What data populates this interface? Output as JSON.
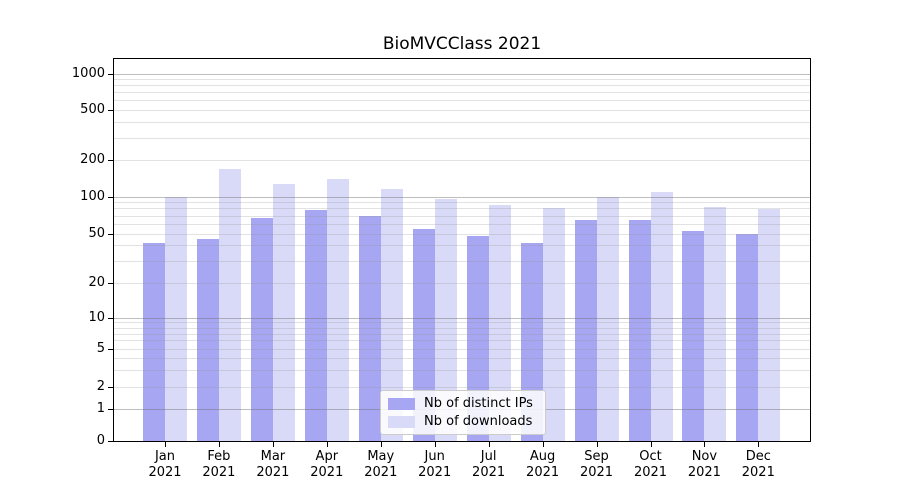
{
  "chart_data": {
    "type": "bar",
    "title": "BioMVCClass 2021",
    "categories": [
      "Jan",
      "Feb",
      "Mar",
      "Apr",
      "May",
      "Jun",
      "Jul",
      "Aug",
      "Sep",
      "Oct",
      "Nov",
      "Dec"
    ],
    "year_label": "2021",
    "series": [
      {
        "key": "distinct-ips",
        "name": "Nb of distinct IPs",
        "color": "#a6a6f2",
        "values": [
          42,
          45,
          67,
          78,
          70,
          54,
          48,
          42,
          64,
          64,
          52,
          50
        ]
      },
      {
        "key": "downloads",
        "name": "Nb of downloads",
        "color": "#d9d9f8",
        "values": [
          100,
          168,
          127,
          140,
          115,
          95,
          85,
          80,
          100,
          108,
          82,
          79
        ]
      }
    ],
    "xlabel": "",
    "ylabel": "",
    "yscale": "log-like (1-2-5 sequence with 0 baseline)",
    "ytick_labels": [
      "1000",
      "500",
      "200",
      "100",
      "50",
      "20",
      "10",
      "5",
      "2",
      "1",
      "0"
    ],
    "ytick_values": [
      1000,
      500,
      200,
      100,
      50,
      20,
      10,
      5,
      2,
      1,
      0
    ],
    "ylim": [
      0,
      1320
    ],
    "grid": "horizontal major (powers of 10) + minor (2-9 per decade)",
    "legend_position": "lower center"
  }
}
